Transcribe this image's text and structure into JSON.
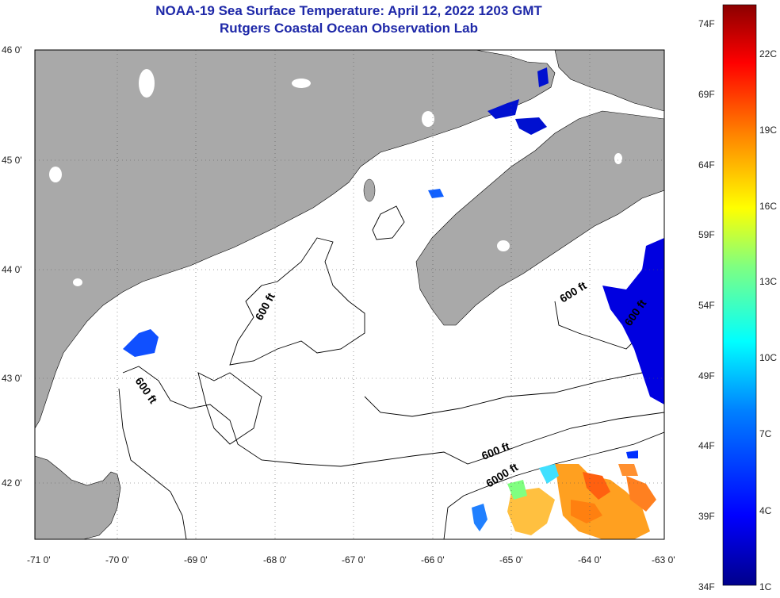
{
  "title": "NOAA-19 Sea Surface Temperature:  April 12, 2022 1203 GMT",
  "subtitle": "Rutgers Coastal Ocean Observation Lab",
  "map": {
    "lat_labels": [
      "46 0'",
      "45 0'",
      "44 0'",
      "43 0'",
      "42 0'"
    ],
    "lon_labels": [
      "-71 0'",
      "-70 0'",
      "-69 0'",
      "-68 0'",
      "-67 0'",
      "-66 0'",
      "-65 0'",
      "-64 0'",
      "-63 0'"
    ],
    "land_color": "#a9a9a9",
    "water_color": "#ffffff",
    "contour_labels": [
      "600 ft",
      "600 ft",
      "600 ft",
      "600 ft",
      "6000 ft",
      "600 ft"
    ]
  },
  "colorbar": {
    "fahrenheit": [
      "74F",
      "69F",
      "64F",
      "59F",
      "54F",
      "49F",
      "44F",
      "39F",
      "34F"
    ],
    "celsius": [
      "22C",
      "19C",
      "16C",
      "13C",
      "10C",
      "7C",
      "4C",
      "1C"
    ],
    "colors": [
      "#00008b",
      "#0000ff",
      "#0080ff",
      "#00ffff",
      "#80ff80",
      "#ffff00",
      "#ff8000",
      "#ff0000",
      "#8b0000"
    ]
  }
}
